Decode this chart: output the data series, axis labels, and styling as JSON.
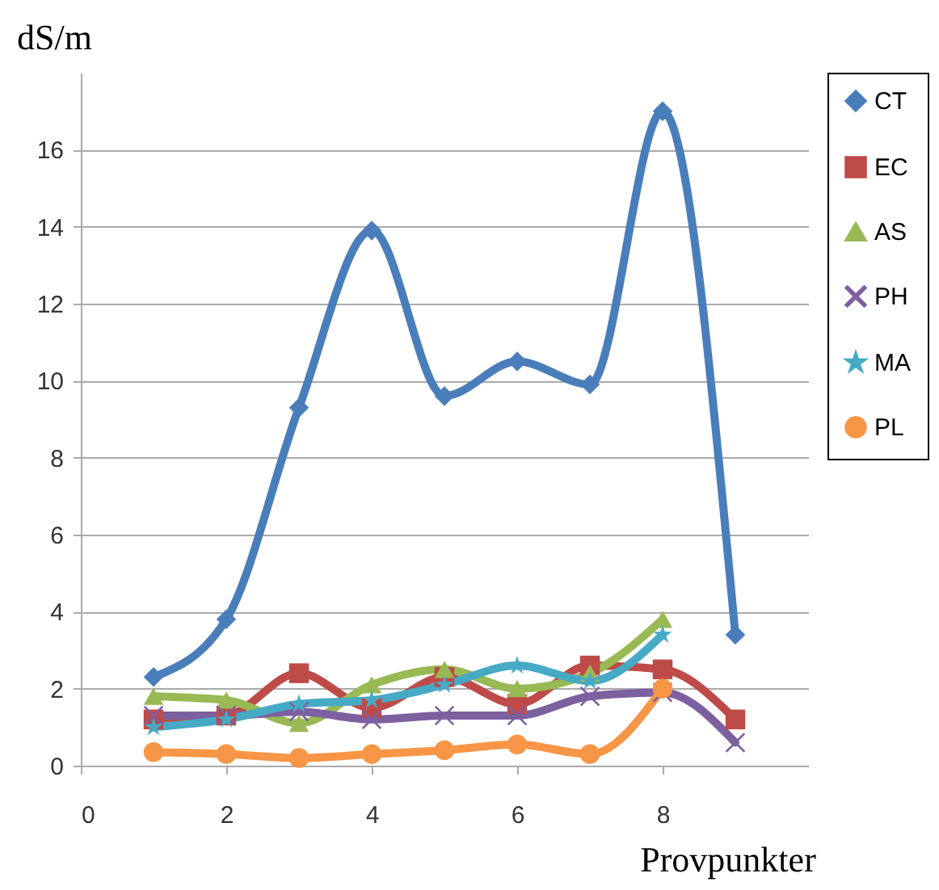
{
  "chart_data": {
    "type": "line",
    "xlabel": "Provpunkter",
    "ylabel": "dS/m",
    "x": [
      1,
      2,
      3,
      4,
      5,
      6,
      7,
      8,
      9
    ],
    "xlim": [
      0,
      10
    ],
    "xticks": [
      0,
      2,
      4,
      6,
      8
    ],
    "ylim": [
      0,
      18
    ],
    "yticks": [
      0,
      2,
      4,
      6,
      8,
      10,
      12,
      14,
      16
    ],
    "grid": "y",
    "legend": "right",
    "series": [
      {
        "name": "CT",
        "color": "#4a7ebb",
        "marker": "diamond",
        "values": [
          2.3,
          3.8,
          9.3,
          13.9,
          9.6,
          10.5,
          9.9,
          17.0,
          3.4
        ]
      },
      {
        "name": "EC",
        "color": "#be4b48",
        "marker": "square",
        "values": [
          1.2,
          1.3,
          2.4,
          1.5,
          2.3,
          1.6,
          2.6,
          2.5,
          1.2
        ]
      },
      {
        "name": "AS",
        "color": "#98b954",
        "marker": "triangle",
        "values": [
          1.8,
          1.7,
          1.1,
          2.1,
          2.5,
          2.0,
          2.4,
          3.8,
          null
        ]
      },
      {
        "name": "PH",
        "color": "#7d60a0",
        "marker": "cross",
        "values": [
          1.3,
          1.3,
          1.4,
          1.2,
          1.3,
          1.3,
          1.8,
          1.9,
          0.6
        ]
      },
      {
        "name": "MA",
        "color": "#46aac5",
        "marker": "star",
        "values": [
          1.0,
          1.2,
          1.6,
          1.7,
          2.1,
          2.6,
          2.2,
          3.4,
          null
        ]
      },
      {
        "name": "PL",
        "color": "#f79646",
        "marker": "circle",
        "values": [
          0.35,
          0.3,
          0.2,
          0.3,
          0.4,
          0.55,
          0.3,
          2.0,
          null
        ]
      }
    ]
  }
}
